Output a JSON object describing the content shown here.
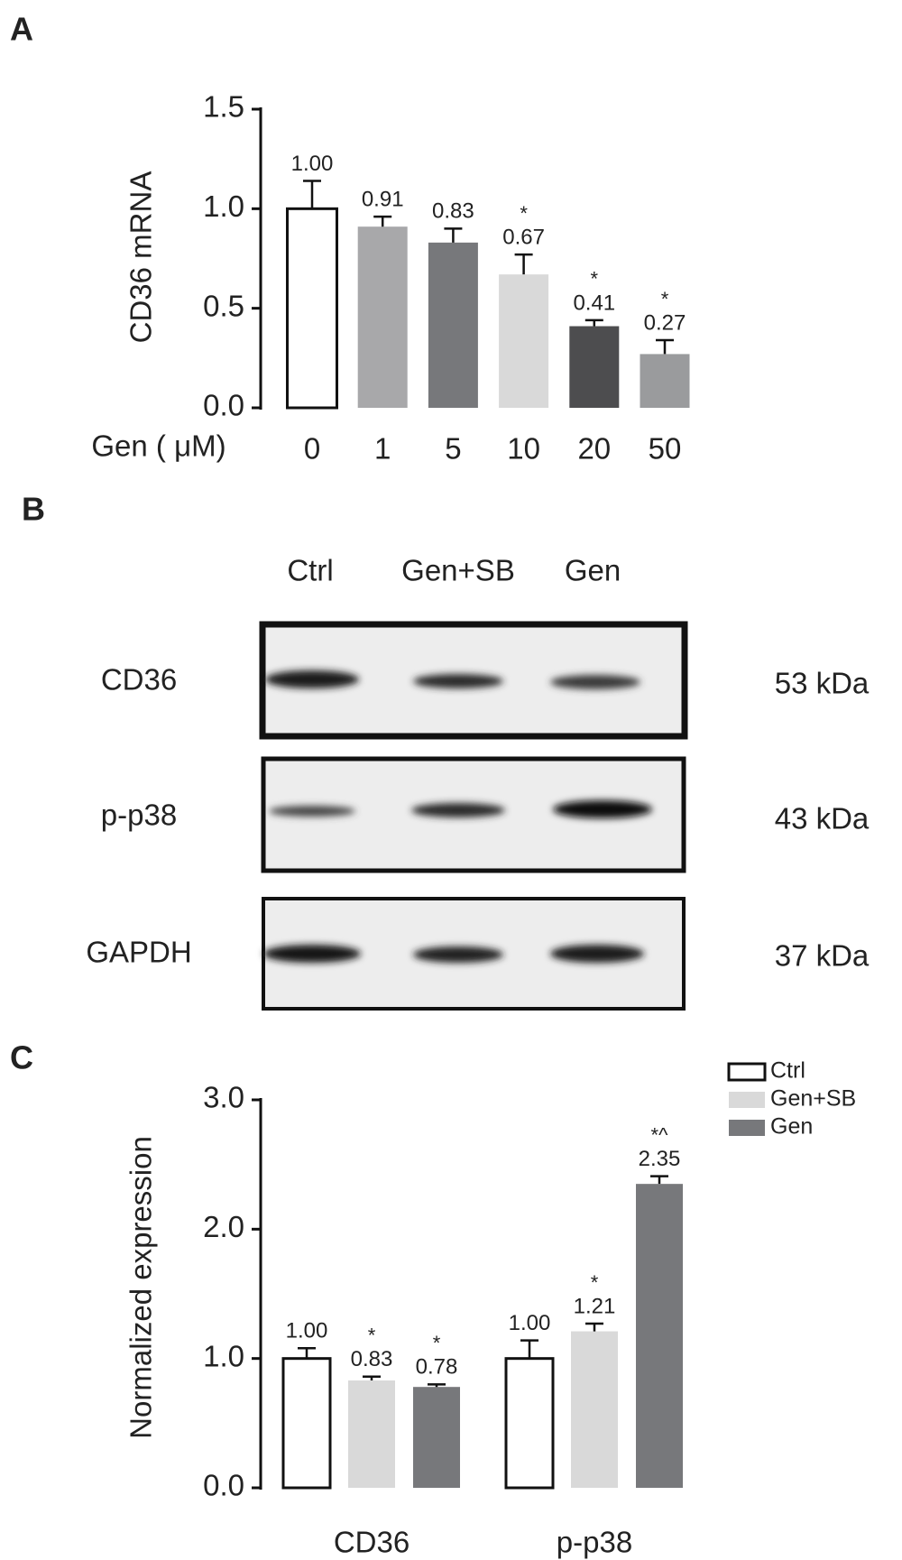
{
  "chart_data": [
    {
      "type": "bar",
      "panel": "A",
      "y_label": "CD36 mRNA",
      "x_label": "Gen ( μM)",
      "categories": [
        "0",
        "1",
        "5",
        "10",
        "20",
        "50"
      ],
      "values": [
        1.0,
        0.91,
        0.83,
        0.67,
        0.41,
        0.27
      ],
      "value_labels": [
        "1.00",
        "0.91",
        "0.83",
        "0.67",
        "0.41",
        "0.27"
      ],
      "errors": [
        0.14,
        0.05,
        0.07,
        0.1,
        0.03,
        0.07
      ],
      "significance": [
        null,
        null,
        null,
        "*",
        "*",
        "*"
      ],
      "colors": [
        "#ffffff",
        "#a8a8aa",
        "#77787b",
        "#d9d9d9",
        "#4d4d4f",
        "#9a9b9d"
      ],
      "ylim": [
        0,
        1.5
      ],
      "yticks": [
        {
          "value": 0,
          "label": "0.0"
        },
        {
          "value": 0.5,
          "label": "0.5"
        },
        {
          "value": 1,
          "label": "1.0"
        },
        {
          "value": 1.5,
          "label": "1.5"
        }
      ]
    },
    {
      "type": "grouped_bar",
      "panel": "C",
      "y_label": "Normalized expression",
      "categories": [
        "CD36",
        "p-p38"
      ],
      "series": [
        {
          "name": "Ctrl",
          "color": "#ffffff",
          "values": [
            1.0,
            1.0
          ],
          "value_labels": [
            "1.00",
            "1.00"
          ],
          "errors": [
            0.08,
            0.14
          ],
          "significance": [
            null,
            null
          ]
        },
        {
          "name": "Gen+SB",
          "color": "#d9d9d9",
          "values": [
            0.83,
            1.21
          ],
          "value_labels": [
            "0.83",
            "1.21"
          ],
          "errors": [
            0.03,
            0.06
          ],
          "significance": [
            "*",
            "*"
          ]
        },
        {
          "name": "Gen",
          "color": "#77787b",
          "values": [
            0.78,
            2.35
          ],
          "value_labels": [
            "0.78",
            "2.35"
          ],
          "errors": [
            0.02,
            0.06
          ],
          "significance": [
            "*",
            "*^"
          ]
        }
      ],
      "legend": "top-right",
      "ylim": [
        0,
        3
      ],
      "yticks": [
        {
          "value": 0,
          "label": "0.0"
        },
        {
          "value": 1,
          "label": "1.0"
        },
        {
          "value": 2,
          "label": "2.0"
        },
        {
          "value": 3,
          "label": "3.0"
        }
      ]
    }
  ],
  "blot": {
    "panel": "B",
    "lanes": [
      "Ctrl",
      "Gen+SB",
      "Gen"
    ],
    "rows": [
      {
        "name": "CD36",
        "size": "53 kDa"
      },
      {
        "name": "p-p38",
        "size": "43 kDa"
      },
      {
        "name": "GAPDH",
        "size": "37 kDa"
      }
    ]
  }
}
